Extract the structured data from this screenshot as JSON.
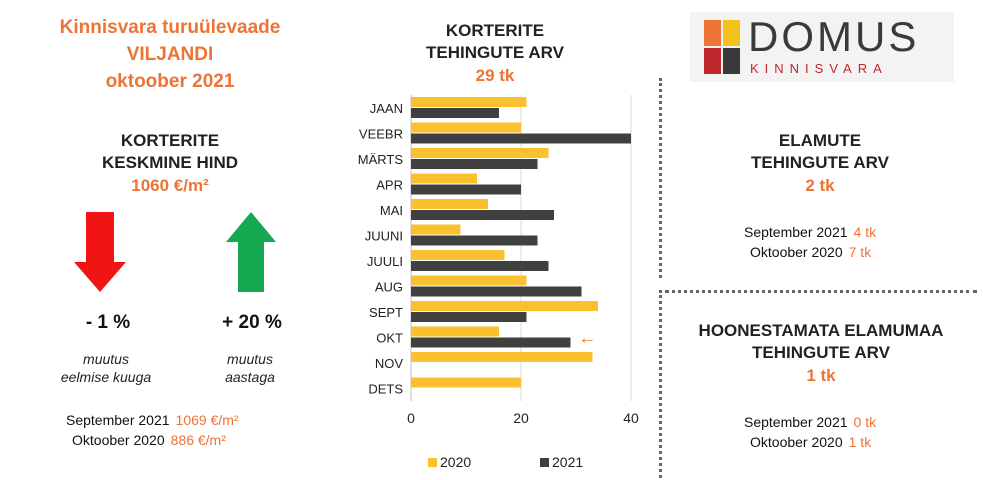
{
  "header": {
    "line1": "Kinnisvara turuülevaade",
    "line2": "VILJANDI",
    "line3": "oktoober 2021"
  },
  "price": {
    "heading1": "KORTERITE",
    "heading2": "KESKMINE HIND",
    "value": "1060 €/m²",
    "monthly_change": "- 1 %",
    "monthly_label1": "muutus",
    "monthly_label2": "eelmise kuuga",
    "yearly_change": "+ 20 %",
    "yearly_label1": "muutus",
    "yearly_label2": "aastaga",
    "cmp": [
      {
        "label": "September 2021",
        "value": "1069 €/m²"
      },
      {
        "label": "Oktoober 2020",
        "value": "886 €/m²"
      }
    ],
    "colors": {
      "down": "#f01414",
      "up": "#14a850"
    }
  },
  "apartments": {
    "heading1": "KORTERITE",
    "heading2": "TEHINGUTE ARV",
    "value": "29 tk"
  },
  "logo": {
    "name": "DOMUS",
    "sub": "KINNISVARA",
    "colors": [
      "#ec7434",
      "#f5c21b",
      "#c0282d",
      "#3a3a3a"
    ]
  },
  "houses": {
    "heading1": "ELAMUTE",
    "heading2": "TEHINGUTE ARV",
    "value": "2 tk",
    "cmp": [
      {
        "label": "September 2021",
        "value": "4 tk"
      },
      {
        "label": "Oktoober 2020",
        "value": "7 tk"
      }
    ]
  },
  "land": {
    "heading1": "HOONESTAMATA ELAMUMAA",
    "heading2": "TEHINGUTE ARV",
    "value": "1 tk",
    "cmp": [
      {
        "label": "September 2021",
        "value": "0 tk"
      },
      {
        "label": "Oktoober 2020",
        "value": "1 tk"
      }
    ]
  },
  "chart_data": {
    "type": "bar",
    "orientation": "horizontal",
    "categories": [
      "JAAN",
      "VEEBR",
      "MÄRTS",
      "APR",
      "MAI",
      "JUUNI",
      "JUULI",
      "AUG",
      "SEPT",
      "OKT",
      "NOV",
      "DETS"
    ],
    "series": [
      {
        "name": "2020",
        "color": "#fbc02d",
        "values": [
          21,
          20,
          25,
          12,
          14,
          9,
          17,
          21,
          34,
          16,
          33,
          20
        ]
      },
      {
        "name": "2021",
        "color": "#404040",
        "values": [
          16,
          40,
          23,
          20,
          26,
          23,
          25,
          31,
          21,
          29,
          null,
          null
        ]
      }
    ],
    "xlim": [
      0,
      40
    ],
    "xticks": [
      "0",
      "20",
      "40"
    ],
    "grid": true,
    "legend": "bottom",
    "annotation": {
      "category": "OKT",
      "text": "←",
      "color": "#ec7434"
    }
  }
}
